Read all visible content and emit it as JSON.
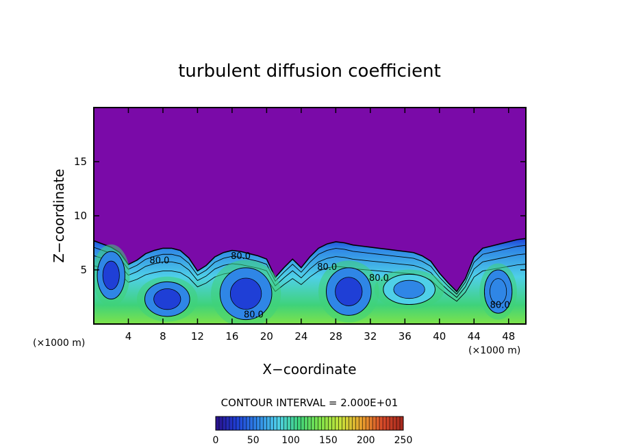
{
  "chart_data": {
    "type": "heatmap",
    "title": "turbulent diffusion coefficient",
    "xlabel": "X−coordinate",
    "ylabel": "Z−coordinate",
    "x_unit_left": "(×1000 m)",
    "x_unit_right": "(×1000 m)",
    "xlim": [
      0,
      50
    ],
    "ylim": [
      0,
      20
    ],
    "x_ticks": [
      4,
      8,
      12,
      16,
      20,
      24,
      28,
      32,
      36,
      40,
      44,
      48
    ],
    "y_ticks": [
      5,
      10,
      15
    ],
    "contour_interval_text": "CONTOUR INTERVAL = 2.000E+01",
    "contour_labels": [
      {
        "x": 7.6,
        "z": 5.6,
        "text": "80.0"
      },
      {
        "x": 17.0,
        "z": 6.0,
        "text": "80.0"
      },
      {
        "x": 18.5,
        "z": 0.6,
        "text": "80.0"
      },
      {
        "x": 27.0,
        "z": 5.0,
        "text": "80.0"
      },
      {
        "x": 33.0,
        "z": 4.0,
        "text": "80.0"
      },
      {
        "x": 47.0,
        "z": 1.5,
        "text": "80.0"
      }
    ],
    "colorbar": {
      "min": 0,
      "max": 250,
      "ticks": [
        0,
        50,
        100,
        150,
        200,
        250
      ],
      "colormap": [
        "#2a0f8a",
        "#1f3fd6",
        "#2f86e6",
        "#4fd0e8",
        "#3fd27a",
        "#7ee34a",
        "#c7e13a",
        "#e9a12d",
        "#d84a2a",
        "#a3271d"
      ]
    },
    "background_color": "#7a0aa8",
    "boundary_layer": {
      "x": [
        0,
        1,
        2,
        3,
        4,
        5,
        6,
        7,
        8,
        9,
        10,
        11,
        12,
        13,
        14,
        15,
        16,
        17,
        18,
        19,
        20,
        21,
        22,
        23,
        24,
        25,
        26,
        27,
        28,
        29,
        30,
        31,
        32,
        33,
        34,
        35,
        36,
        37,
        38,
        39,
        40,
        41,
        42,
        43,
        44,
        45,
        46,
        47,
        48,
        49,
        50
      ],
      "top": [
        7.7,
        7.4,
        7.1,
        6.6,
        5.5,
        5.9,
        6.5,
        6.8,
        7.0,
        7.0,
        6.8,
        6.1,
        4.9,
        5.4,
        6.2,
        6.6,
        6.8,
        6.7,
        6.5,
        6.3,
        6.0,
        4.3,
        5.2,
        6.0,
        5.2,
        6.2,
        7.0,
        7.4,
        7.6,
        7.5,
        7.3,
        7.2,
        7.1,
        7.0,
        6.9,
        6.8,
        6.7,
        6.6,
        6.3,
        5.8,
        4.7,
        3.8,
        3.0,
        4.2,
        6.2,
        7.0,
        7.2,
        7.4,
        7.6,
        7.8,
        7.9
      ],
      "cells": [
        {
          "x": 2.0,
          "z": 4.5,
          "rx": 1.6,
          "rz": 2.2,
          "level": 30
        },
        {
          "x": 8.5,
          "z": 2.3,
          "rx": 2.6,
          "rz": 1.6,
          "level": 35
        },
        {
          "x": 17.6,
          "z": 2.8,
          "rx": 3.0,
          "rz": 2.4,
          "level": 25
        },
        {
          "x": 29.5,
          "z": 3.0,
          "rx": 2.6,
          "rz": 2.2,
          "level": 35
        },
        {
          "x": 36.5,
          "z": 3.2,
          "rx": 3.0,
          "rz": 1.4,
          "level": 60
        },
        {
          "x": 46.8,
          "z": 3.0,
          "rx": 1.6,
          "rz": 2.0,
          "level": 45
        }
      ]
    }
  }
}
